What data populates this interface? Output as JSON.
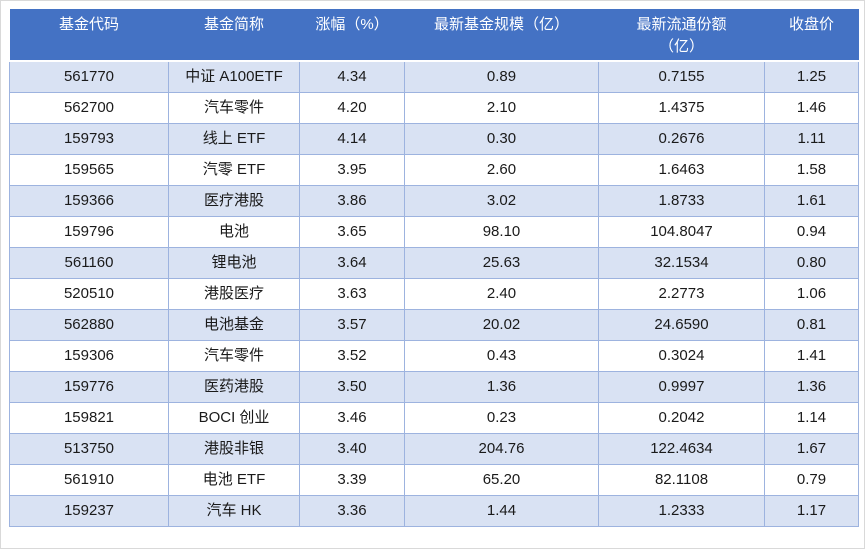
{
  "colors": {
    "header_bg": "#4472C4",
    "header_text": "#FFFFFF",
    "band_row_bg": "#D9E2F3",
    "white_row_bg": "#FFFFFF",
    "cell_border": "#9DB3DF",
    "body_text": "#1A1A1A"
  },
  "table": {
    "columns": [
      {
        "key": "code",
        "label": "基金代码",
        "label_line2": ""
      },
      {
        "key": "name",
        "label": "基金简称",
        "label_line2": ""
      },
      {
        "key": "change",
        "label": "涨幅（%）",
        "label_line2": ""
      },
      {
        "key": "scale",
        "label": "最新基金规模（亿）",
        "label_line2": ""
      },
      {
        "key": "shares",
        "label": "最新流通份额",
        "label_line2": "（亿）"
      },
      {
        "key": "close",
        "label": "收盘价",
        "label_line2": ""
      }
    ],
    "rows": [
      [
        "561770",
        "中证 A100ETF",
        "4.34",
        "0.89",
        "0.7155",
        "1.25"
      ],
      [
        "562700",
        "汽车零件",
        "4.20",
        "2.10",
        "1.4375",
        "1.46"
      ],
      [
        "159793",
        "线上 ETF",
        "4.14",
        "0.30",
        "0.2676",
        "1.11"
      ],
      [
        "159565",
        "汽零 ETF",
        "3.95",
        "2.60",
        "1.6463",
        "1.58"
      ],
      [
        "159366",
        "医疗港股",
        "3.86",
        "3.02",
        "1.8733",
        "1.61"
      ],
      [
        "159796",
        "电池",
        "3.65",
        "98.10",
        "104.8047",
        "0.94"
      ],
      [
        "561160",
        "锂电池",
        "3.64",
        "25.63",
        "32.1534",
        "0.80"
      ],
      [
        "520510",
        "港股医疗",
        "3.63",
        "2.40",
        "2.2773",
        "1.06"
      ],
      [
        "562880",
        "电池基金",
        "3.57",
        "20.02",
        "24.6590",
        "0.81"
      ],
      [
        "159306",
        "汽车零件",
        "3.52",
        "0.43",
        "0.3024",
        "1.41"
      ],
      [
        "159776",
        "医药港股",
        "3.50",
        "1.36",
        "0.9997",
        "1.36"
      ],
      [
        "159821",
        "BOCI 创业",
        "3.46",
        "0.23",
        "0.2042",
        "1.14"
      ],
      [
        "513750",
        "港股非银",
        "3.40",
        "204.76",
        "122.4634",
        "1.67"
      ],
      [
        "561910",
        "电池 ETF",
        "3.39",
        "65.20",
        "82.1108",
        "0.79"
      ],
      [
        "159237",
        "汽车 HK",
        "3.36",
        "1.44",
        "1.2333",
        "1.17"
      ]
    ]
  }
}
